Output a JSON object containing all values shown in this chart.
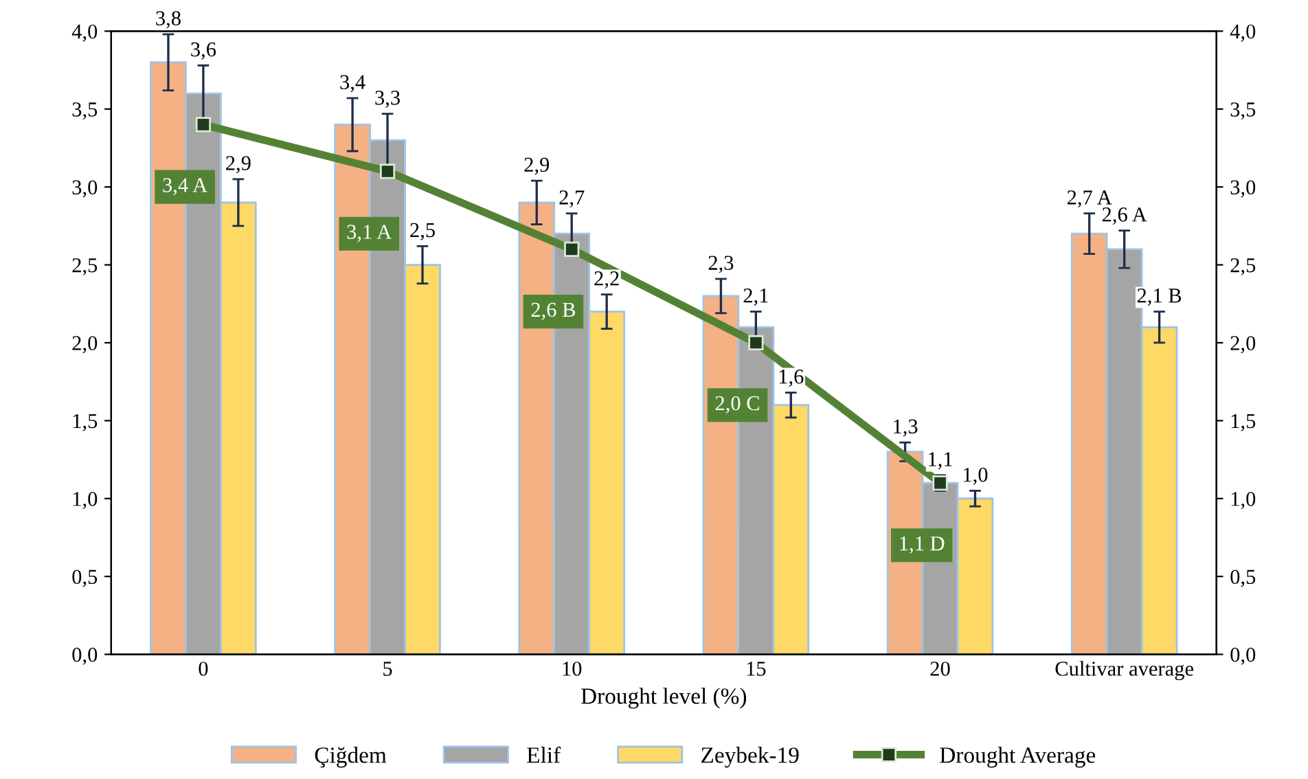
{
  "chart_data": {
    "type": "bar",
    "xlabel": "Drought level (%)",
    "categories": [
      "0",
      "5",
      "10",
      "15",
      "20",
      "Cultivar average"
    ],
    "series": [
      {
        "name": "Çiğdem",
        "color": "#f4b183",
        "values": [
          3.8,
          3.4,
          2.9,
          2.3,
          1.3,
          2.7
        ],
        "errors": [
          0.18,
          0.17,
          0.14,
          0.11,
          0.06,
          0.13
        ],
        "value_labels": [
          "3,8",
          "3,4",
          "2,9",
          "2,3",
          "1,3",
          "2,7 A"
        ]
      },
      {
        "name": "Elif",
        "color": "#a5a5a5",
        "values": [
          3.6,
          3.3,
          2.7,
          2.1,
          1.1,
          2.6
        ],
        "errors": [
          0.18,
          0.17,
          0.13,
          0.1,
          0.05,
          0.12
        ],
        "value_labels": [
          "3,6",
          "3,3",
          "2,7",
          "2,1",
          "1,1",
          "2,6 A"
        ]
      },
      {
        "name": "Zeybek-19",
        "color": "#ffd966",
        "values": [
          2.9,
          2.5,
          2.2,
          1.6,
          1.0,
          2.1
        ],
        "errors": [
          0.15,
          0.12,
          0.11,
          0.08,
          0.05,
          0.1
        ],
        "value_labels": [
          "2,9",
          "2,5",
          "2,2",
          "1,6",
          "1,0",
          "2,1 B"
        ]
      },
      {
        "name": "Drought Average",
        "type": "line",
        "color": "#548235",
        "marker": "square",
        "values": [
          3.4,
          3.1,
          2.6,
          2.0,
          1.1,
          null
        ],
        "value_labels": [
          "3,4 A",
          "3,1 A",
          "2,6 B",
          "2,0 C",
          "1,1 D",
          null
        ]
      }
    ],
    "ylim": [
      0,
      4
    ],
    "yticks": [
      {
        "value": 0,
        "label": "0,0"
      },
      {
        "value": 0.5,
        "label": "0,5"
      },
      {
        "value": 1,
        "label": "1,0"
      },
      {
        "value": 1.5,
        "label": "1,5"
      },
      {
        "value": 2,
        "label": "2,0"
      },
      {
        "value": 2.5,
        "label": "2,5"
      },
      {
        "value": 3,
        "label": "3,0"
      },
      {
        "value": 3.5,
        "label": "3,5"
      },
      {
        "value": 4,
        "label": "4,0"
      }
    ],
    "y2lim": [
      0,
      4
    ],
    "y2ticks": [
      {
        "value": 0,
        "label": "0,0"
      },
      {
        "value": 0.5,
        "label": "0,5"
      },
      {
        "value": 1,
        "label": "1,0"
      },
      {
        "value": 1.5,
        "label": "1,5"
      },
      {
        "value": 2,
        "label": "2,0"
      },
      {
        "value": 2.5,
        "label": "2,5"
      },
      {
        "value": 3,
        "label": "3,0"
      },
      {
        "value": 3.5,
        "label": "3,5"
      },
      {
        "value": 4,
        "label": "4,0"
      }
    ],
    "legend": "bottom",
    "grid": false
  }
}
